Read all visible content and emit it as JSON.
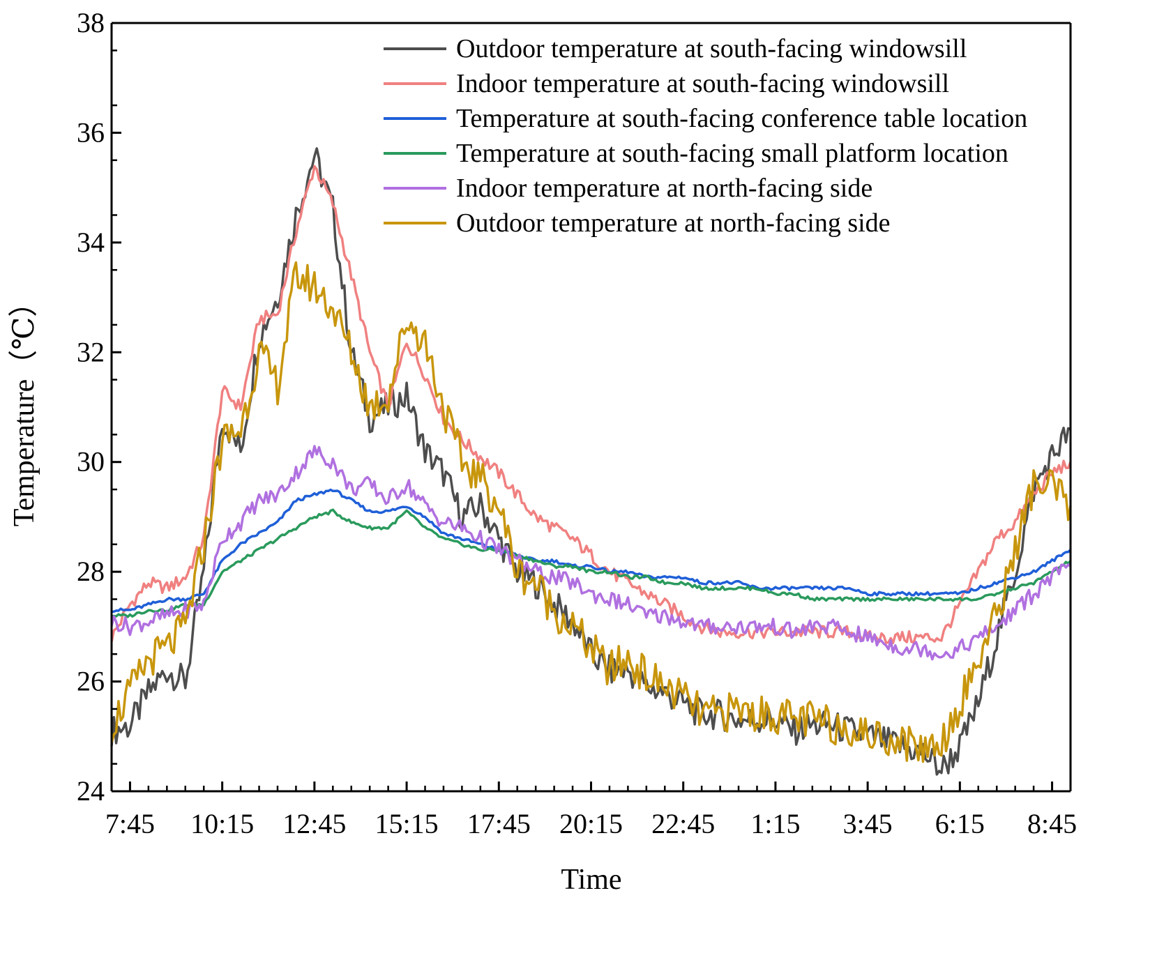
{
  "chart_data": {
    "type": "line",
    "title": "",
    "xlabel": "Time",
    "ylabel": "Temperature（℃）",
    "ylim": [
      24,
      38
    ],
    "yticks": [
      24,
      26,
      28,
      30,
      32,
      34,
      36,
      38
    ],
    "x_unit": "hours elapsed from 7:45",
    "xlim": [
      -0.5,
      25.5
    ],
    "xticks": [
      {
        "x": 0,
        "label": "7:45"
      },
      {
        "x": 2.5,
        "label": "10:15"
      },
      {
        "x": 5,
        "label": "12:45"
      },
      {
        "x": 7.5,
        "label": "15:15"
      },
      {
        "x": 10,
        "label": "17:45"
      },
      {
        "x": 12.5,
        "label": "20:15"
      },
      {
        "x": 15,
        "label": "22:45"
      },
      {
        "x": 17.5,
        "label": "1:15"
      },
      {
        "x": 20,
        "label": "3:45"
      },
      {
        "x": 22.5,
        "label": "6:15"
      },
      {
        "x": 25,
        "label": "8:45"
      }
    ],
    "x": [
      -0.5,
      0,
      0.5,
      1,
      1.5,
      2,
      2.5,
      3,
      3.5,
      4,
      4.5,
      5,
      5.5,
      6,
      6.5,
      7,
      7.5,
      8,
      8.5,
      9,
      9.5,
      10,
      10.5,
      11,
      11.5,
      12,
      12.5,
      13,
      13.5,
      14,
      14.5,
      15,
      15.5,
      16,
      16.5,
      17,
      17.5,
      18,
      18.5,
      19,
      19.5,
      20,
      20.5,
      21,
      21.5,
      22,
      22.5,
      23,
      23.5,
      24,
      24.5,
      25,
      25.5
    ],
    "grid": false,
    "legend_position": "top-right",
    "series": [
      {
        "name": "Outdoor temperature at south-facing windowsill",
        "color": "#4d4d4d",
        "values": [
          25.1,
          25.2,
          25.8,
          26.2,
          26.0,
          28.0,
          30.8,
          30.2,
          32.3,
          33.0,
          34.5,
          35.6,
          34.6,
          32.0,
          30.8,
          31.0,
          31.2,
          30.2,
          29.8,
          29.0,
          29.2,
          28.6,
          28.0,
          27.8,
          27.4,
          27.1,
          26.5,
          26.2,
          26.2,
          25.9,
          25.8,
          25.6,
          25.4,
          25.4,
          25.3,
          25.3,
          25.3,
          25.1,
          25.2,
          25.2,
          25.1,
          25.0,
          24.9,
          24.8,
          24.7,
          24.4,
          24.8,
          25.6,
          26.8,
          28.0,
          29.5,
          30.1,
          30.6
        ]
      },
      {
        "name": "Indoor temperature at south-facing windowsill",
        "color": "#f08080",
        "values": [
          26.8,
          27.4,
          27.8,
          27.7,
          27.9,
          28.6,
          31.3,
          31.0,
          32.6,
          32.7,
          34.2,
          35.4,
          34.7,
          33.4,
          32.0,
          31.0,
          32.2,
          31.6,
          30.8,
          30.4,
          30.1,
          29.8,
          29.4,
          29.0,
          28.8,
          28.6,
          28.3,
          28.0,
          27.8,
          27.6,
          27.4,
          27.2,
          27.0,
          26.9,
          26.9,
          26.9,
          26.9,
          26.9,
          26.9,
          26.9,
          26.9,
          26.8,
          26.8,
          26.8,
          26.8,
          26.8,
          27.4,
          28.0,
          28.6,
          28.9,
          29.4,
          29.8,
          30.0
        ]
      },
      {
        "name": "Temperature at south-facing conference table location",
        "color": "#1f5fd8",
        "values": [
          27.3,
          27.3,
          27.4,
          27.5,
          27.5,
          27.6,
          28.2,
          28.5,
          28.7,
          28.9,
          29.3,
          29.4,
          29.5,
          29.3,
          29.1,
          29.1,
          29.2,
          29.0,
          28.7,
          28.6,
          28.5,
          28.4,
          28.3,
          28.2,
          28.2,
          28.1,
          28.1,
          28.0,
          28.0,
          27.9,
          27.9,
          27.9,
          27.8,
          27.8,
          27.8,
          27.7,
          27.7,
          27.7,
          27.7,
          27.7,
          27.7,
          27.6,
          27.6,
          27.6,
          27.6,
          27.6,
          27.6,
          27.7,
          27.8,
          27.9,
          28.0,
          28.2,
          28.4
        ]
      },
      {
        "name": "Temperature at south-facing small platform location",
        "color": "#2a9a5c",
        "values": [
          27.2,
          27.2,
          27.3,
          27.3,
          27.4,
          27.4,
          28.0,
          28.2,
          28.4,
          28.6,
          28.8,
          29.0,
          29.1,
          28.9,
          28.8,
          28.8,
          29.1,
          28.8,
          28.6,
          28.5,
          28.4,
          28.4,
          28.3,
          28.2,
          28.1,
          28.1,
          28.0,
          28.0,
          27.9,
          27.9,
          27.8,
          27.8,
          27.7,
          27.7,
          27.7,
          27.7,
          27.6,
          27.6,
          27.5,
          27.5,
          27.5,
          27.5,
          27.5,
          27.5,
          27.5,
          27.5,
          27.5,
          27.5,
          27.6,
          27.7,
          27.8,
          28.0,
          28.2
        ]
      },
      {
        "name": "Indoor temperature at north-facing side",
        "color": "#b070e0",
        "values": [
          27.1,
          27.0,
          27.1,
          27.2,
          27.3,
          27.4,
          28.6,
          28.9,
          29.3,
          29.4,
          29.8,
          30.2,
          30.0,
          29.5,
          29.6,
          29.3,
          29.6,
          29.2,
          28.9,
          28.8,
          28.6,
          28.4,
          28.2,
          28.0,
          27.9,
          27.8,
          27.6,
          27.5,
          27.4,
          27.2,
          27.2,
          27.1,
          27.0,
          27.0,
          27.0,
          27.0,
          27.0,
          26.9,
          27.0,
          27.0,
          26.9,
          26.8,
          26.7,
          26.6,
          26.6,
          26.5,
          26.6,
          26.8,
          27.0,
          27.3,
          27.6,
          27.9,
          28.1
        ]
      },
      {
        "name": "Outdoor temperature at north-facing side",
        "color": "#c8960c",
        "values": [
          25.2,
          25.8,
          26.4,
          26.6,
          27.0,
          28.5,
          30.4,
          30.6,
          32.0,
          31.4,
          33.4,
          33.2,
          32.8,
          32.0,
          31.0,
          31.2,
          32.6,
          32.2,
          31.0,
          30.0,
          29.7,
          29.2,
          28.0,
          27.8,
          27.3,
          27.0,
          26.6,
          26.2,
          26.4,
          26.1,
          25.9,
          25.7,
          25.4,
          25.4,
          25.5,
          25.4,
          25.4,
          25.3,
          25.3,
          25.2,
          25.2,
          25.0,
          25.0,
          24.9,
          24.8,
          24.9,
          25.6,
          26.4,
          27.2,
          28.4,
          29.6,
          29.5,
          29.2
        ]
      }
    ]
  }
}
